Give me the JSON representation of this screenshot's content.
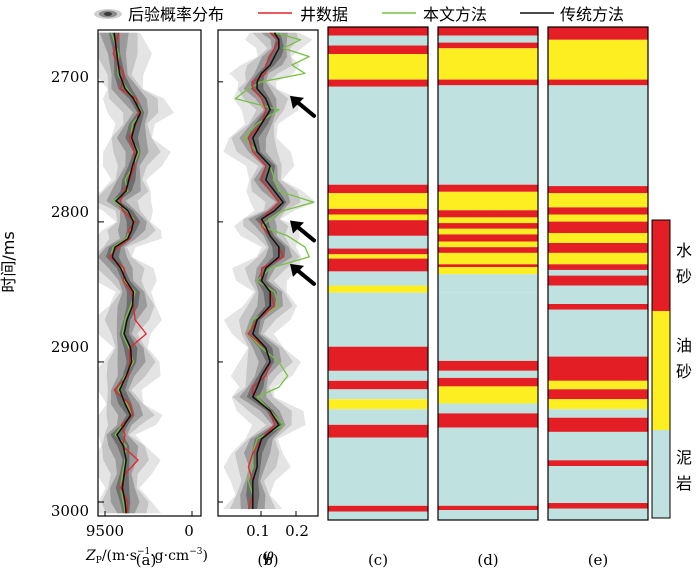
{
  "legend": {
    "posterior": "后验概率分布",
    "well": "井数据",
    "proposed": "本文方法",
    "traditional": "传统方法"
  },
  "colors": {
    "well": "#e8222a",
    "proposed": "#77c043",
    "traditional": "#111111",
    "water_sand": "#e31e24",
    "oil_sand": "#fdee21",
    "mudstone": "#bfe1df"
  },
  "y_axis": {
    "label": "时间/ms",
    "ticks": [
      "2700",
      "2800",
      "2900",
      "3000"
    ],
    "range": [
      2663,
      3010
    ]
  },
  "panel_a": {
    "xlabel_main": "Z",
    "xlabel_sub": "P",
    "xlabel_unit": "/(m·s",
    "xlabel_e1": "−1",
    "xlabel_mid": "·g·cm",
    "xlabel_e2": "−3",
    "xlabel_end": ")",
    "ticks": [
      "9500",
      "0"
    ],
    "caption": "(a)"
  },
  "panel_b": {
    "xlabel": "φ",
    "ticks": [
      "0.1",
      "0.2"
    ],
    "caption": "(b)"
  },
  "captions": {
    "c": "(c)",
    "d": "(d)",
    "e": "(e)"
  },
  "colorbar": {
    "labels": [
      {
        "a": "水",
        "b": "砂"
      },
      {
        "a": "油",
        "b": "砂"
      },
      {
        "a": "泥",
        "b": "岩"
      }
    ]
  },
  "chart_data": {
    "type": "line",
    "y_unit": "ms",
    "impedance": {
      "x_axis": [
        9500,
        0
      ],
      "t": [
        2665,
        2680,
        2695,
        2705,
        2712,
        2722,
        2730,
        2740,
        2750,
        2760,
        2770,
        2778,
        2785,
        2792,
        2800,
        2806,
        2812,
        2818,
        2825,
        2833,
        2842,
        2850,
        2860,
        2870,
        2880,
        2890,
        2900,
        2910,
        2920,
        2930,
        2938,
        2945,
        2952,
        2960,
        2970,
        2980,
        2990,
        3000,
        3008
      ],
      "traditional": [
        8500,
        8200,
        7900,
        7300,
        6400,
        5600,
        6200,
        6600,
        6000,
        6500,
        6900,
        7200,
        8300,
        7000,
        6400,
        6600,
        7000,
        8400,
        8700,
        7800,
        7200,
        6400,
        6500,
        7100,
        7400,
        6700,
        6600,
        7200,
        7900,
        7300,
        6700,
        7400,
        8200,
        7500,
        7200,
        7400,
        7600,
        7300,
        7200
      ],
      "proposed": [
        8800,
        8000,
        8100,
        7100,
        6300,
        5500,
        6500,
        6700,
        5800,
        6400,
        7300,
        7000,
        8600,
        7100,
        6200,
        6800,
        7200,
        8600,
        8900,
        7600,
        7400,
        6200,
        6700,
        7300,
        7600,
        6900,
        6400,
        7300,
        8100,
        7100,
        6600,
        7600,
        8400,
        7200,
        7300,
        7600,
        7800,
        7500,
        7300
      ],
      "well": [
        8000,
        8600,
        7400,
        7800,
        6100,
        5800,
        6100,
        6800,
        6300,
        6300,
        6800,
        7400,
        7800,
        7600,
        6200,
        6900,
        6800,
        8100,
        9000,
        7400,
        7500,
        6600,
        6400,
        6200,
        5000,
        6800,
        6800,
        7000,
        8500,
        6800,
        6500,
        7700,
        7300,
        7600,
        5900,
        7300,
        7800,
        7000,
        7100
      ]
    },
    "porosity": {
      "x_axis": [
        0,
        0.23
      ],
      "t": [
        2665,
        2670,
        2676,
        2682,
        2688,
        2694,
        2700,
        2705,
        2712,
        2720,
        2730,
        2740,
        2750,
        2760,
        2770,
        2778,
        2786,
        2792,
        2798,
        2803,
        2810,
        2818,
        2825,
        2833,
        2842,
        2850,
        2860,
        2870,
        2880,
        2890,
        2900,
        2910,
        2918,
        2925,
        2935,
        2945,
        2955,
        2965,
        2975,
        2985,
        2995,
        3005
      ],
      "traditional": [
        0.13,
        0.14,
        0.14,
        0.13,
        0.12,
        0.1,
        0.09,
        0.09,
        0.11,
        0.12,
        0.1,
        0.08,
        0.09,
        0.12,
        0.11,
        0.13,
        0.15,
        0.13,
        0.1,
        0.11,
        0.12,
        0.14,
        0.14,
        0.11,
        0.1,
        0.12,
        0.12,
        0.09,
        0.08,
        0.11,
        0.12,
        0.1,
        0.09,
        0.08,
        0.12,
        0.14,
        0.1,
        0.09,
        0.09,
        0.08,
        0.08,
        0.08
      ],
      "proposed": [
        0.13,
        0.19,
        0.15,
        0.21,
        0.17,
        0.2,
        0.1,
        0.07,
        0.04,
        0.14,
        0.09,
        0.06,
        0.09,
        0.12,
        0.13,
        0.14,
        0.22,
        0.15,
        0.12,
        0.1,
        0.16,
        0.2,
        0.21,
        0.12,
        0.09,
        0.13,
        0.14,
        0.08,
        0.07,
        0.1,
        0.14,
        0.16,
        0.14,
        0.09,
        0.12,
        0.15,
        0.09,
        0.08,
        0.08,
        0.07,
        0.08,
        0.07
      ],
      "well": [
        0.12,
        0.14,
        0.13,
        0.12,
        0.11,
        0.11,
        0.08,
        0.08,
        0.1,
        0.11,
        0.1,
        0.07,
        0.08,
        0.11,
        0.1,
        0.12,
        0.14,
        0.12,
        0.1,
        0.1,
        0.12,
        0.14,
        0.15,
        0.1,
        0.1,
        0.12,
        0.13,
        0.09,
        0.07,
        0.11,
        0.12,
        0.11,
        0.08,
        0.08,
        0.12,
        0.13,
        0.1,
        0.08,
        0.07,
        0.08,
        0.08,
        0.07
      ]
    },
    "arrows_at_ms": [
      2710,
      2799,
      2830
    ],
    "facies_codes": {
      "1": "water_sand",
      "2": "oil_sand",
      "3": "mudstone"
    },
    "facies": {
      "c": [
        [
          2663,
          2669,
          1
        ],
        [
          2669,
          2676,
          3
        ],
        [
          2676,
          2682,
          1
        ],
        [
          2682,
          2700,
          2
        ],
        [
          2700,
          2705,
          1
        ],
        [
          2705,
          2774,
          3
        ],
        [
          2774,
          2780,
          1
        ],
        [
          2780,
          2791,
          2
        ],
        [
          2791,
          2795,
          1
        ],
        [
          2795,
          2799,
          2
        ],
        [
          2799,
          2810,
          1
        ],
        [
          2810,
          2819,
          3
        ],
        [
          2819,
          2823,
          1
        ],
        [
          2823,
          2826,
          2
        ],
        [
          2826,
          2835,
          1
        ],
        [
          2835,
          2845,
          3
        ],
        [
          2845,
          2850,
          2
        ],
        [
          2850,
          2888,
          3
        ],
        [
          2888,
          2905,
          1
        ],
        [
          2905,
          2912,
          3
        ],
        [
          2912,
          2918,
          1
        ],
        [
          2918,
          2925,
          3
        ],
        [
          2925,
          2932,
          2
        ],
        [
          2932,
          2943,
          3
        ],
        [
          2943,
          2952,
          1
        ],
        [
          2952,
          3000,
          3
        ],
        [
          3000,
          3004,
          1
        ],
        [
          3004,
          3010,
          3
        ]
      ],
      "d": [
        [
          2663,
          2669,
          1
        ],
        [
          2669,
          2674,
          3
        ],
        [
          2674,
          2678,
          1
        ],
        [
          2678,
          2700,
          2
        ],
        [
          2700,
          2704,
          1
        ],
        [
          2704,
          2774,
          3
        ],
        [
          2774,
          2779,
          1
        ],
        [
          2779,
          2792,
          2
        ],
        [
          2792,
          2797,
          1
        ],
        [
          2797,
          2801,
          2
        ],
        [
          2801,
          2805,
          1
        ],
        [
          2805,
          2809,
          2
        ],
        [
          2809,
          2814,
          1
        ],
        [
          2814,
          2818,
          2
        ],
        [
          2818,
          2822,
          1
        ],
        [
          2822,
          2830,
          2
        ],
        [
          2830,
          2832,
          1
        ],
        [
          2832,
          2837,
          2
        ],
        [
          2837,
          2850,
          3
        ],
        [
          2850,
          2898,
          3
        ],
        [
          2898,
          2905,
          1
        ],
        [
          2905,
          2910,
          3
        ],
        [
          2910,
          2916,
          1
        ],
        [
          2916,
          2928,
          2
        ],
        [
          2928,
          2935,
          3
        ],
        [
          2935,
          2945,
          1
        ],
        [
          2945,
          3000,
          3
        ],
        [
          3000,
          3003,
          1
        ],
        [
          3003,
          3010,
          3
        ]
      ],
      "e": [
        [
          2663,
          2672,
          1
        ],
        [
          2672,
          2700,
          2
        ],
        [
          2700,
          2704,
          1
        ],
        [
          2704,
          2775,
          3
        ],
        [
          2775,
          2780,
          1
        ],
        [
          2780,
          2790,
          2
        ],
        [
          2790,
          2795,
          1
        ],
        [
          2795,
          2800,
          2
        ],
        [
          2800,
          2808,
          1
        ],
        [
          2808,
          2815,
          2
        ],
        [
          2815,
          2822,
          1
        ],
        [
          2822,
          2830,
          2
        ],
        [
          2830,
          2834,
          1
        ],
        [
          2834,
          2838,
          3
        ],
        [
          2838,
          2845,
          1
        ],
        [
          2845,
          2858,
          3
        ],
        [
          2858,
          2862,
          1
        ],
        [
          2862,
          2895,
          3
        ],
        [
          2895,
          2912,
          1
        ],
        [
          2912,
          2918,
          2
        ],
        [
          2918,
          2925,
          1
        ],
        [
          2925,
          2932,
          2
        ],
        [
          2932,
          2938,
          3
        ],
        [
          2938,
          2948,
          1
        ],
        [
          2948,
          2968,
          3
        ],
        [
          2968,
          2972,
          1
        ],
        [
          2972,
          2998,
          3
        ],
        [
          2998,
          3002,
          1
        ],
        [
          3002,
          3010,
          3
        ]
      ]
    }
  }
}
